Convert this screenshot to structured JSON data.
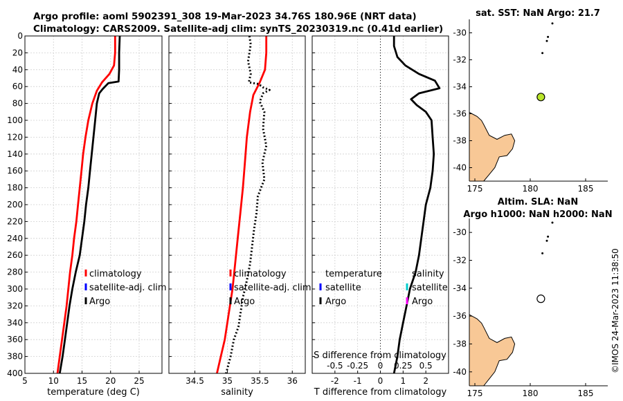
{
  "header": {
    "title_line1": "Argo profile: aoml 5902391_308 19-Mar-2023 34.76S 180.96E (NRT data)",
    "title_line2": "Climatology: CARS2009. Satellite-adj clim: synTS_20230319.nc (0.41d earlier)"
  },
  "watermark": "©IMOS 24-Mar-2023 11:38:50",
  "colors": {
    "climatology": "#ff0000",
    "satellite": "#0000ff",
    "argo": "#000000",
    "salinity_satellite": "#00cccc",
    "salinity_argo": "#ff00ff",
    "land": "#f8c896",
    "argo_marker": "#b9e52a"
  },
  "chart_data": [
    {
      "type": "line",
      "title": "",
      "xlabel": "temperature (deg C)",
      "ylabel": "",
      "xlim": [
        5,
        29
      ],
      "ylim": [
        0,
        400
      ],
      "y_reversed": true,
      "xticks": [
        5,
        10,
        15,
        20,
        25
      ],
      "yticks": [
        0,
        20,
        40,
        60,
        80,
        100,
        120,
        140,
        160,
        180,
        200,
        220,
        240,
        260,
        280,
        300,
        320,
        340,
        360,
        380,
        400
      ],
      "legend": [
        "climatology",
        "satellite-adj. clim",
        "Argo"
      ],
      "series": [
        {
          "name": "climatology",
          "style": "solid",
          "points": [
            [
              20.8,
              0
            ],
            [
              20.8,
              20
            ],
            [
              20.6,
              35
            ],
            [
              19.8,
              45
            ],
            [
              18.5,
              55
            ],
            [
              17.6,
              65
            ],
            [
              16.8,
              80
            ],
            [
              16.1,
              100
            ],
            [
              15.6,
              120
            ],
            [
              15.2,
              140
            ],
            [
              14.9,
              160
            ],
            [
              14.6,
              180
            ],
            [
              14.3,
              200
            ],
            [
              14.0,
              220
            ],
            [
              13.6,
              240
            ],
            [
              13.3,
              260
            ],
            [
              12.9,
              280
            ],
            [
              12.6,
              300
            ],
            [
              12.3,
              320
            ],
            [
              11.9,
              340
            ],
            [
              11.5,
              360
            ],
            [
              11.1,
              380
            ],
            [
              10.7,
              400
            ]
          ]
        },
        {
          "name": "Argo",
          "style": "solid",
          "points": [
            [
              21.6,
              0
            ],
            [
              21.5,
              20
            ],
            [
              21.5,
              40
            ],
            [
              21.4,
              54
            ],
            [
              19.6,
              56
            ],
            [
              18.6,
              63
            ],
            [
              18.0,
              68
            ],
            [
              17.6,
              80
            ],
            [
              17.3,
              100
            ],
            [
              17.0,
              120
            ],
            [
              16.7,
              140
            ],
            [
              16.4,
              160
            ],
            [
              16.1,
              180
            ],
            [
              15.7,
              200
            ],
            [
              15.4,
              220
            ],
            [
              15.0,
              240
            ],
            [
              14.6,
              260
            ],
            [
              13.9,
              280
            ],
            [
              13.3,
              300
            ],
            [
              12.8,
              320
            ],
            [
              12.4,
              340
            ],
            [
              12.0,
              360
            ],
            [
              11.6,
              380
            ],
            [
              11.1,
              400
            ]
          ]
        }
      ]
    },
    {
      "type": "line",
      "title": "",
      "xlabel": "salinity",
      "ylabel": "",
      "xlim": [
        34.1,
        36.2
      ],
      "ylim": [
        0,
        400
      ],
      "y_reversed": true,
      "xticks": [
        34.5,
        35,
        35.5,
        36
      ],
      "xticklabels": [
        "34.5",
        "35",
        "35.5",
        "36"
      ],
      "legend": [
        "climatology",
        "satellite-adj. clim",
        "Argo"
      ],
      "series": [
        {
          "name": "climatology",
          "style": "solid",
          "points": [
            [
              35.6,
              0
            ],
            [
              35.6,
              20
            ],
            [
              35.58,
              40
            ],
            [
              35.5,
              55
            ],
            [
              35.4,
              70
            ],
            [
              35.35,
              90
            ],
            [
              35.3,
              120
            ],
            [
              35.27,
              150
            ],
            [
              35.24,
              180
            ],
            [
              35.2,
              210
            ],
            [
              35.16,
              240
            ],
            [
              35.12,
              270
            ],
            [
              35.08,
              300
            ],
            [
              35.02,
              330
            ],
            [
              34.96,
              360
            ],
            [
              34.9,
              380
            ],
            [
              34.84,
              400
            ]
          ]
        },
        {
          "name": "Argo",
          "style": "dotted",
          "points": [
            [
              35.34,
              0
            ],
            [
              35.36,
              10
            ],
            [
              35.32,
              30
            ],
            [
              35.36,
              45
            ],
            [
              35.33,
              55
            ],
            [
              35.48,
              57
            ],
            [
              35.55,
              61
            ],
            [
              35.65,
              64
            ],
            [
              35.55,
              68
            ],
            [
              35.5,
              78
            ],
            [
              35.57,
              90
            ],
            [
              35.55,
              110
            ],
            [
              35.6,
              130
            ],
            [
              35.54,
              150
            ],
            [
              35.57,
              170
            ],
            [
              35.47,
              190
            ],
            [
              35.45,
              210
            ],
            [
              35.41,
              230
            ],
            [
              35.38,
              250
            ],
            [
              35.35,
              270
            ],
            [
              35.3,
              290
            ],
            [
              35.24,
              310
            ],
            [
              35.2,
              330
            ],
            [
              35.17,
              345
            ],
            [
              35.1,
              360
            ],
            [
              35.05,
              380
            ],
            [
              34.98,
              400
            ]
          ]
        }
      ]
    },
    {
      "type": "line",
      "title": "",
      "xlabel": "T difference from climatology",
      "xlabel_top": "S difference from climatology",
      "ylabel": "",
      "xlim": [
        -3,
        3
      ],
      "ylim": [
        0,
        400
      ],
      "y_reversed": true,
      "xticks": [
        -2,
        -1,
        0,
        1,
        2
      ],
      "top_ticklabels": [
        "-0.5",
        "-0.25",
        "0",
        "0.25",
        "0.5"
      ],
      "zero_line": true,
      "legend_left": [
        "temperature",
        "satellite",
        "Argo"
      ],
      "legend_right": [
        "salinity",
        "satellite",
        "Argo"
      ],
      "series": [
        {
          "name": "Argo T difference",
          "style": "solid",
          "points": [
            [
              0.6,
              0
            ],
            [
              0.6,
              12
            ],
            [
              0.75,
              25
            ],
            [
              1.1,
              35
            ],
            [
              1.7,
              45
            ],
            [
              2.4,
              53
            ],
            [
              2.6,
              62
            ],
            [
              1.7,
              68
            ],
            [
              1.35,
              75
            ],
            [
              1.6,
              82
            ],
            [
              2.0,
              90
            ],
            [
              2.25,
              100
            ],
            [
              2.3,
              120
            ],
            [
              2.35,
              140
            ],
            [
              2.3,
              160
            ],
            [
              2.2,
              180
            ],
            [
              2.0,
              200
            ],
            [
              1.9,
              220
            ],
            [
              1.8,
              240
            ],
            [
              1.7,
              260
            ],
            [
              1.55,
              280
            ],
            [
              1.3,
              300
            ],
            [
              1.15,
              320
            ],
            [
              1.0,
              340
            ],
            [
              0.85,
              360
            ],
            [
              0.75,
              380
            ],
            [
              0.6,
              400
            ]
          ]
        }
      ]
    },
    {
      "type": "scatter",
      "title": "sat. SST: NaN Argo: 21.7",
      "xlim": [
        174.5,
        187
      ],
      "ylim": [
        -41,
        -29
      ],
      "xticks": [
        175,
        180,
        185
      ],
      "yticks": [
        -30,
        -32,
        -34,
        -36,
        -38,
        -40
      ],
      "islands": [
        [
          182.0,
          -29.3
        ],
        [
          181.6,
          -30.3
        ],
        [
          181.5,
          -30.6
        ],
        [
          181.1,
          -31.5
        ]
      ],
      "argo_position": [
        180.96,
        -34.76
      ],
      "argo_filled": true
    },
    {
      "type": "scatter",
      "title_line1": "Altim. SLA: NaN",
      "title_line2": "Argo h1000: NaN h2000: NaN",
      "xlim": [
        174.5,
        187
      ],
      "ylim": [
        -41,
        -29
      ],
      "xticks": [
        175,
        180,
        185
      ],
      "yticks": [
        -30,
        -32,
        -34,
        -36,
        -38,
        -40
      ],
      "islands": [
        [
          182.0,
          -29.3
        ],
        [
          181.6,
          -30.3
        ],
        [
          181.5,
          -30.6
        ],
        [
          181.1,
          -31.5
        ]
      ],
      "argo_position": [
        180.96,
        -34.76
      ],
      "argo_filled": false
    }
  ]
}
